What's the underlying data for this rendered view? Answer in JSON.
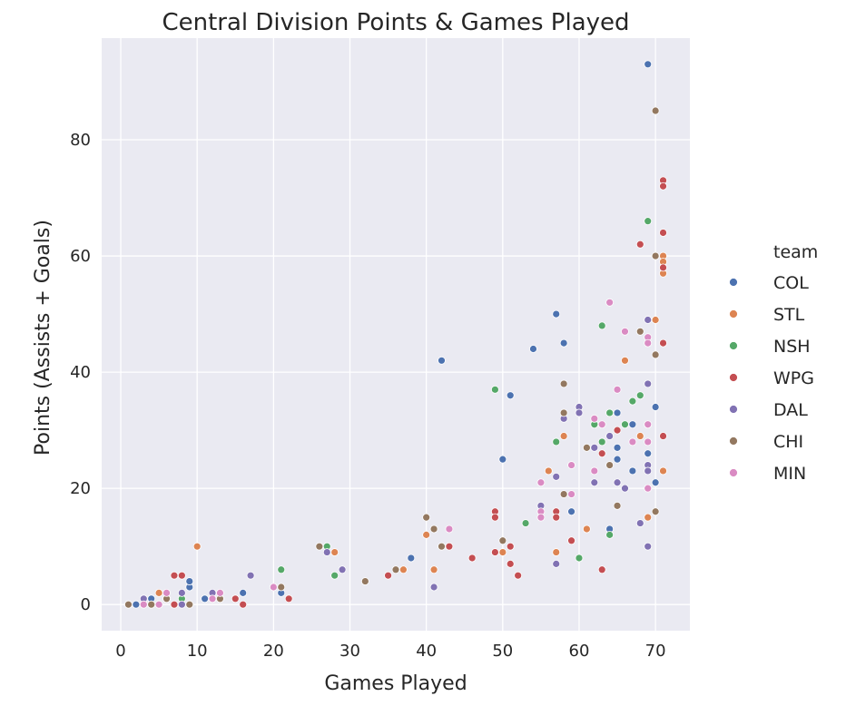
{
  "chart_data": {
    "type": "scatter",
    "title": "Central Division Points & Games Played",
    "xlabel": "Games Played",
    "ylabel": "Points (Assists + Goals)",
    "xlim": [
      -2.5,
      74.5
    ],
    "ylim": [
      -4.5,
      97.5
    ],
    "xticks": [
      0,
      10,
      20,
      30,
      40,
      50,
      60,
      70
    ],
    "yticks": [
      0,
      20,
      40,
      60,
      80
    ],
    "grid": true,
    "legend_title": "team",
    "legend_position": "right",
    "series": [
      {
        "name": "COL",
        "color": "#4c72b0",
        "points": [
          [
            69,
            93
          ],
          [
            42,
            42
          ],
          [
            57,
            50
          ],
          [
            54,
            44
          ],
          [
            58,
            45
          ],
          [
            51,
            36
          ],
          [
            50,
            25
          ],
          [
            65,
            33
          ],
          [
            70,
            34
          ],
          [
            64,
            13
          ],
          [
            59,
            16
          ],
          [
            67,
            31
          ],
          [
            67,
            23
          ],
          [
            65,
            25
          ],
          [
            65,
            27
          ],
          [
            69,
            26
          ],
          [
            70,
            21
          ],
          [
            38,
            8
          ],
          [
            21,
            2
          ],
          [
            16,
            2
          ],
          [
            9,
            3
          ],
          [
            9,
            4
          ],
          [
            2,
            0
          ],
          [
            4,
            0
          ],
          [
            4,
            1
          ],
          [
            3,
            1
          ],
          [
            5,
            0
          ],
          [
            8,
            1
          ],
          [
            1,
            0
          ],
          [
            7,
            0
          ],
          [
            11,
            1
          ]
        ]
      },
      {
        "name": "STL",
        "color": "#dd8452",
        "points": [
          [
            10,
            10
          ],
          [
            71,
            60
          ],
          [
            71,
            59
          ],
          [
            71,
            57
          ],
          [
            70,
            49
          ],
          [
            66,
            42
          ],
          [
            58,
            29
          ],
          [
            56,
            23
          ],
          [
            68,
            29
          ],
          [
            71,
            23
          ],
          [
            57,
            9
          ],
          [
            69,
            15
          ],
          [
            61,
            13
          ],
          [
            50,
            9
          ],
          [
            41,
            6
          ],
          [
            40,
            12
          ],
          [
            37,
            6
          ],
          [
            28,
            9
          ],
          [
            13,
            1
          ],
          [
            6,
            1
          ],
          [
            5,
            2
          ],
          [
            3,
            0
          ],
          [
            4,
            0
          ]
        ]
      },
      {
        "name": "NSH",
        "color": "#55a868",
        "points": [
          [
            69,
            66
          ],
          [
            63,
            48
          ],
          [
            49,
            37
          ],
          [
            68,
            36
          ],
          [
            67,
            35
          ],
          [
            64,
            33
          ],
          [
            62,
            31
          ],
          [
            66,
            31
          ],
          [
            69,
            31
          ],
          [
            57,
            28
          ],
          [
            63,
            28
          ],
          [
            57,
            15
          ],
          [
            53,
            14
          ],
          [
            64,
            12
          ],
          [
            60,
            8
          ],
          [
            28,
            5
          ],
          [
            21,
            6
          ],
          [
            27,
            10
          ],
          [
            8,
            1
          ],
          [
            12,
            1
          ]
        ]
      },
      {
        "name": "WPG",
        "color": "#c44e52",
        "points": [
          [
            71,
            73
          ],
          [
            71,
            72
          ],
          [
            71,
            64
          ],
          [
            68,
            62
          ],
          [
            71,
            58
          ],
          [
            71,
            45
          ],
          [
            71,
            29
          ],
          [
            65,
            30
          ],
          [
            63,
            26
          ],
          [
            57,
            16
          ],
          [
            57,
            15
          ],
          [
            49,
            16
          ],
          [
            49,
            15
          ],
          [
            59,
            11
          ],
          [
            63,
            6
          ],
          [
            51,
            7
          ],
          [
            52,
            5
          ],
          [
            49,
            9
          ],
          [
            51,
            10
          ],
          [
            43,
            10
          ],
          [
            46,
            8
          ],
          [
            35,
            5
          ],
          [
            22,
            1
          ],
          [
            16,
            0
          ],
          [
            15,
            1
          ],
          [
            8,
            5
          ],
          [
            7,
            5
          ],
          [
            7,
            0
          ],
          [
            12,
            1
          ]
        ]
      },
      {
        "name": "DAL",
        "color": "#8172b3",
        "points": [
          [
            69,
            49
          ],
          [
            69,
            38
          ],
          [
            60,
            34
          ],
          [
            60,
            33
          ],
          [
            58,
            32
          ],
          [
            64,
            29
          ],
          [
            62,
            27
          ],
          [
            62,
            21
          ],
          [
            65,
            21
          ],
          [
            57,
            22
          ],
          [
            55,
            17
          ],
          [
            66,
            20
          ],
          [
            69,
            24
          ],
          [
            69,
            23
          ],
          [
            68,
            14
          ],
          [
            69,
            10
          ],
          [
            57,
            7
          ],
          [
            41,
            3
          ],
          [
            29,
            6
          ],
          [
            27,
            9
          ],
          [
            17,
            5
          ],
          [
            12,
            2
          ],
          [
            8,
            2
          ],
          [
            8,
            0
          ],
          [
            6,
            1
          ],
          [
            3,
            1
          ],
          [
            9,
            0
          ]
        ]
      },
      {
        "name": "CHI",
        "color": "#937860",
        "points": [
          [
            70,
            85
          ],
          [
            70,
            60
          ],
          [
            68,
            47
          ],
          [
            70,
            43
          ],
          [
            58,
            38
          ],
          [
            58,
            33
          ],
          [
            61,
            27
          ],
          [
            64,
            24
          ],
          [
            65,
            17
          ],
          [
            70,
            16
          ],
          [
            58,
            19
          ],
          [
            50,
            11
          ],
          [
            41,
            13
          ],
          [
            40,
            15
          ],
          [
            42,
            10
          ],
          [
            36,
            6
          ],
          [
            32,
            4
          ],
          [
            26,
            10
          ],
          [
            21,
            3
          ],
          [
            13,
            1
          ],
          [
            9,
            0
          ],
          [
            4,
            0
          ],
          [
            1,
            0
          ],
          [
            6,
            1
          ]
        ]
      },
      {
        "name": "MIN",
        "color": "#da8bc3",
        "points": [
          [
            64,
            52
          ],
          [
            66,
            47
          ],
          [
            69,
            46
          ],
          [
            69,
            45
          ],
          [
            65,
            37
          ],
          [
            69,
            31
          ],
          [
            62,
            32
          ],
          [
            63,
            31
          ],
          [
            62,
            23
          ],
          [
            59,
            24
          ],
          [
            67,
            28
          ],
          [
            69,
            28
          ],
          [
            69,
            20
          ],
          [
            55,
            21
          ],
          [
            55,
            16
          ],
          [
            55,
            15
          ],
          [
            43,
            13
          ],
          [
            59,
            19
          ],
          [
            20,
            3
          ],
          [
            13,
            2
          ],
          [
            12,
            1
          ],
          [
            6,
            2
          ],
          [
            5,
            0
          ],
          [
            3,
            0
          ]
        ]
      }
    ]
  }
}
